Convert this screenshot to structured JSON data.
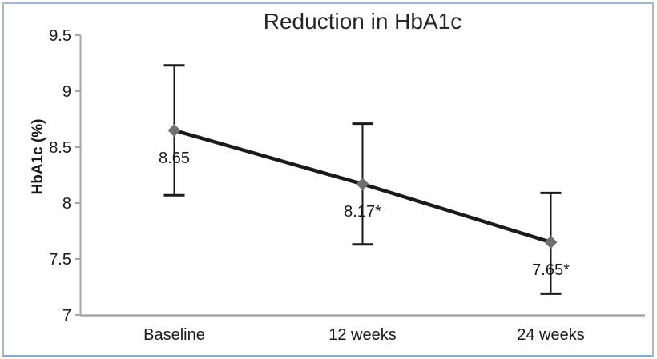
{
  "chart_data": {
    "type": "line",
    "title": "Reduction in HbA1c",
    "xlabel": "",
    "ylabel": "HbA1c (%)",
    "categories": [
      "Baseline",
      "12 weeks",
      "24 weeks"
    ],
    "series": [
      {
        "name": "HbA1c",
        "values": [
          8.65,
          8.17,
          7.65
        ],
        "data_labels": [
          "8.65",
          "8.17*",
          "7.65*"
        ],
        "error_upper": [
          9.23,
          8.71,
          8.09
        ],
        "error_lower": [
          8.07,
          7.63,
          7.19
        ]
      }
    ],
    "ylim": [
      7,
      9.5
    ],
    "yticks": [
      7,
      7.5,
      8,
      8.5,
      9,
      9.5
    ],
    "ytick_labels": [
      "7",
      "7.5",
      "8",
      "8.5",
      "9",
      "9.5"
    ],
    "grid": false,
    "legend_position": "none",
    "marker_shape": "diamond"
  },
  "colors": {
    "line": "#1a1a1a",
    "marker": "#6f6f6f",
    "error_bar": "#1a1a1a",
    "axis": "#a6a6a6",
    "tick_text": "#1a1a1a",
    "title_text": "#262626",
    "frame_border": "#a4b9d2",
    "frame_border_bottom": "#8da8c8",
    "background": "#ffffff"
  }
}
